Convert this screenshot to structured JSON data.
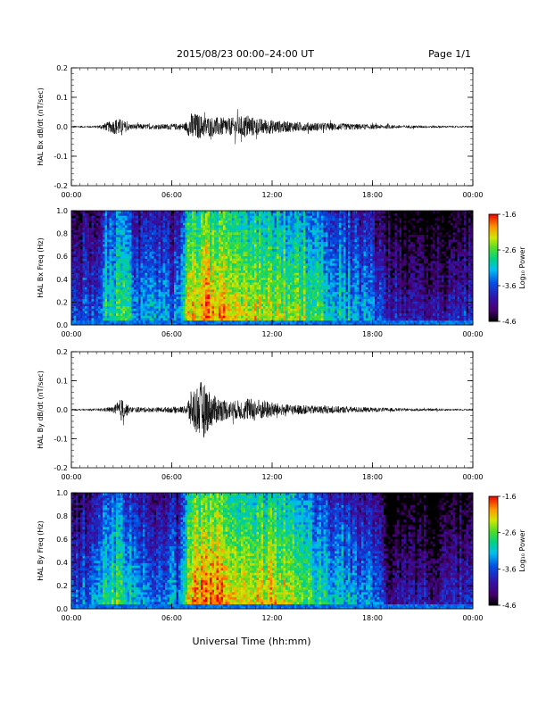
{
  "header": {
    "title": "2015/08/23  00:00–24:00 UT",
    "page": "Page 1/1"
  },
  "footer": {
    "xlabel": "Universal Time (hh:mm)"
  },
  "chart_data": [
    {
      "type": "line",
      "ylabel": "HAL Bx dB/dt (nT/sec)",
      "xlabel": "",
      "ylim": [
        -0.2,
        0.2
      ],
      "yticks": [
        "0.2",
        "0.1",
        "0.0",
        "-0.1",
        "-0.2"
      ],
      "yticks_values": [
        0.2,
        0.1,
        0.0,
        -0.1,
        -0.2
      ],
      "xlim": [
        0,
        24
      ],
      "xticks": [
        "00:00",
        "06:00",
        "12:00",
        "18:00",
        "00:00"
      ],
      "xticks_values": [
        0,
        6,
        12,
        18,
        24
      ],
      "amplitude_envelope": {
        "hours": [
          0,
          1.5,
          2.0,
          2.8,
          3.5,
          5.0,
          6.8,
          7.2,
          8.0,
          9.5,
          10.5,
          11.0,
          12.5,
          14.0,
          16.0,
          18.0,
          20.0,
          22.0,
          24.0
        ],
        "values": [
          0.003,
          0.004,
          0.012,
          0.03,
          0.01,
          0.008,
          0.012,
          0.05,
          0.035,
          0.03,
          0.04,
          0.03,
          0.02,
          0.015,
          0.012,
          0.008,
          0.005,
          0.004,
          0.003
        ]
      }
    },
    {
      "type": "heatmap",
      "ylabel": "HAL Bx Freq (Hz)",
      "ylim": [
        0.0,
        1.0
      ],
      "yticks": [
        "1.0",
        "0.8",
        "0.6",
        "0.4",
        "0.2",
        "0.0"
      ],
      "yticks_values": [
        1.0,
        0.8,
        0.6,
        0.4,
        0.2,
        0.0
      ],
      "xlim": [
        0,
        24
      ],
      "xticks": [
        "00:00",
        "06:00",
        "12:00",
        "18:00",
        "00:00"
      ],
      "xticks_values": [
        0,
        6,
        12,
        18,
        24
      ],
      "colorbar": {
        "label": "Log₁₀ Power",
        "range": [
          -4.6,
          -1.6
        ],
        "ticks": [
          "-1.6",
          "-2.6",
          "-3.6",
          "-4.6"
        ],
        "ticks_values": [
          -1.6,
          -2.6,
          -3.6,
          -4.6
        ]
      },
      "activity_profile": {
        "hours": [
          0,
          1.5,
          2.0,
          3.0,
          4.0,
          6.5,
          7.0,
          8.0,
          10.0,
          12.0,
          14.0,
          15.0,
          18.0,
          19.0,
          22.0,
          24.0
        ],
        "values": [
          0.35,
          0.4,
          0.62,
          0.65,
          0.45,
          0.42,
          0.85,
          0.9,
          0.82,
          0.78,
          0.72,
          0.6,
          0.45,
          0.25,
          0.22,
          0.3
        ]
      }
    },
    {
      "type": "line",
      "ylabel": "HAL By dB/dt (nT/sec)",
      "xlabel": "",
      "ylim": [
        -0.2,
        0.2
      ],
      "yticks": [
        "0.2",
        "0.1",
        "0.0",
        "-0.1",
        "-0.2"
      ],
      "yticks_values": [
        0.2,
        0.1,
        0.0,
        -0.1,
        -0.2
      ],
      "xlim": [
        0,
        24
      ],
      "xticks": [
        "00:00",
        "06:00",
        "12:00",
        "18:00",
        "00:00"
      ],
      "xticks_values": [
        0,
        6,
        12,
        18,
        24
      ],
      "amplitude_envelope": {
        "hours": [
          0,
          1.5,
          2.5,
          3.0,
          3.5,
          5.0,
          6.8,
          7.2,
          7.8,
          8.5,
          9.5,
          11.0,
          12.5,
          14.0,
          16.0,
          18.0,
          20.0,
          22.0,
          24.0
        ],
        "values": [
          0.003,
          0.004,
          0.01,
          0.04,
          0.01,
          0.008,
          0.012,
          0.07,
          0.1,
          0.05,
          0.03,
          0.04,
          0.02,
          0.015,
          0.012,
          0.008,
          0.005,
          0.004,
          0.003
        ]
      }
    },
    {
      "type": "heatmap",
      "ylabel": "HAL By Freq (Hz)",
      "ylim": [
        0.0,
        1.0
      ],
      "yticks": [
        "1.0",
        "0.8",
        "0.6",
        "0.4",
        "0.2",
        "0.0"
      ],
      "yticks_values": [
        1.0,
        0.8,
        0.6,
        0.4,
        0.2,
        0.0
      ],
      "xlim": [
        0,
        24
      ],
      "xticks": [
        "00:00",
        "06:00",
        "12:00",
        "18:00",
        "00:00"
      ],
      "xticks_values": [
        0,
        6,
        12,
        18,
        24
      ],
      "colorbar": {
        "label": "Log₁₀ Power",
        "range": [
          -4.6,
          -1.6
        ],
        "ticks": [
          "-1.6",
          "-2.6",
          "-3.6",
          "-4.6"
        ],
        "ticks_values": [
          -1.6,
          -2.6,
          -3.6,
          -4.6
        ]
      },
      "activity_profile": {
        "hours": [
          0,
          1.5,
          2.0,
          3.0,
          4.0,
          6.5,
          7.0,
          8.0,
          10.0,
          12.0,
          14.0,
          15.0,
          18.0,
          19.0,
          22.0,
          24.0
        ],
        "values": [
          0.38,
          0.42,
          0.6,
          0.66,
          0.48,
          0.42,
          0.86,
          0.92,
          0.84,
          0.82,
          0.72,
          0.58,
          0.42,
          0.22,
          0.2,
          0.3
        ]
      }
    }
  ]
}
